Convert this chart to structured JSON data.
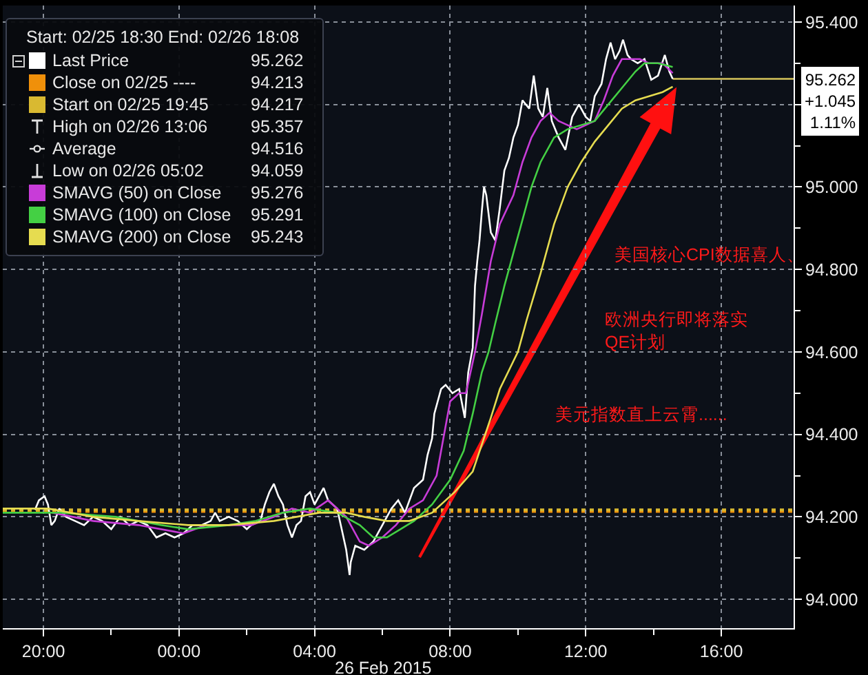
{
  "chart_data": {
    "type": "line",
    "legend": "top left",
    "grid": true,
    "legend_title": "Start: 02/25 18:30 End: 02/26 18:08",
    "xlabel": "26 Feb 2015",
    "xlim": [
      "2015-02-25T18:48",
      "2015-02-26T18:08"
    ],
    "xticks": [
      {
        "value": "2015-02-25T20:00",
        "label": "20:00"
      },
      {
        "value": "2015-02-25T22:00",
        "label": null
      },
      {
        "value": "2015-02-26T00:00",
        "label": "00:00"
      },
      {
        "value": "2015-02-26T02:00",
        "label": null
      },
      {
        "value": "2015-02-26T04:00",
        "label": "04:00"
      },
      {
        "value": "2015-02-26T06:00",
        "label": null
      },
      {
        "value": "2015-02-26T08:00",
        "label": "08:00"
      },
      {
        "value": "2015-02-26T10:00",
        "label": null
      },
      {
        "value": "2015-02-26T12:00",
        "label": "12:00"
      },
      {
        "value": "2015-02-26T14:00",
        "label": null
      },
      {
        "value": "2015-02-26T16:00",
        "label": "16:00"
      }
    ],
    "ylim": [
      93.93,
      95.44
    ],
    "yticks": [
      {
        "value": 94.0,
        "label": "94.000"
      },
      {
        "value": 94.1,
        "label": null
      },
      {
        "value": 94.2,
        "label": "94.200"
      },
      {
        "value": 94.3,
        "label": null
      },
      {
        "value": 94.4,
        "label": "94.400"
      },
      {
        "value": 94.5,
        "label": null
      },
      {
        "value": 94.6,
        "label": "94.600"
      },
      {
        "value": 94.7,
        "label": null
      },
      {
        "value": 94.8,
        "label": "94.800"
      },
      {
        "value": 94.9,
        "label": null
      },
      {
        "value": 95.0,
        "label": "95.000"
      },
      {
        "value": 95.1,
        "label": null
      },
      {
        "value": 95.2,
        "label": null
      },
      {
        "value": 95.3,
        "label": null
      },
      {
        "value": 95.4,
        "label": "95.400"
      }
    ],
    "series": [
      {
        "name": "Last Price 95.262",
        "color": "#ffffff",
        "x": [
          "2015-02-25T19:45",
          "2015-02-25T19:52",
          "2015-02-25T20:02",
          "2015-02-25T20:08",
          "2015-02-25T20:14",
          "2015-02-25T20:20",
          "2015-02-25T20:28",
          "2015-02-25T20:40",
          "2015-02-25T20:56",
          "2015-02-25T21:12",
          "2015-02-25T21:28",
          "2015-02-25T21:44",
          "2015-02-25T22:00",
          "2015-02-25T22:16",
          "2015-02-25T22:32",
          "2015-02-25T22:48",
          "2015-02-25T23:04",
          "2015-02-25T23:20",
          "2015-02-25T23:36",
          "2015-02-25T23:52",
          "2015-02-26T00:08",
          "2015-02-26T00:24",
          "2015-02-26T00:40",
          "2015-02-26T00:56",
          "2015-02-26T01:04",
          "2015-02-26T01:12",
          "2015-02-26T01:28",
          "2015-02-26T01:44",
          "2015-02-26T02:00",
          "2015-02-26T02:08",
          "2015-02-26T02:24",
          "2015-02-26T02:32",
          "2015-02-26T02:40",
          "2015-02-26T02:48",
          "2015-02-26T02:56",
          "2015-02-26T03:04",
          "2015-02-26T03:12",
          "2015-02-26T03:20",
          "2015-02-26T03:28",
          "2015-02-26T03:36",
          "2015-02-26T03:44",
          "2015-02-26T03:52",
          "2015-02-26T04:00",
          "2015-02-26T04:08",
          "2015-02-26T04:16",
          "2015-02-26T04:24",
          "2015-02-26T04:40",
          "2015-02-26T04:48",
          "2015-02-26T04:56",
          "2015-02-26T05:02",
          "2015-02-26T05:04",
          "2015-02-26T05:12",
          "2015-02-26T05:28",
          "2015-02-26T05:44",
          "2015-02-26T06:00",
          "2015-02-26T06:16",
          "2015-02-26T06:28",
          "2015-02-26T06:40",
          "2015-02-26T06:48",
          "2015-02-26T06:56",
          "2015-02-26T07:12",
          "2015-02-26T07:20",
          "2015-02-26T07:28",
          "2015-02-26T07:32",
          "2015-02-26T07:44",
          "2015-02-26T07:52",
          "2015-02-26T08:04",
          "2015-02-26T08:16",
          "2015-02-26T08:26",
          "2015-02-26T08:32",
          "2015-02-26T08:40",
          "2015-02-26T08:44",
          "2015-02-26T08:48",
          "2015-02-26T08:52",
          "2015-02-26T08:56",
          "2015-02-26T09:00",
          "2015-02-26T09:04",
          "2015-02-26T09:12",
          "2015-02-26T09:20",
          "2015-02-26T09:28",
          "2015-02-26T09:36",
          "2015-02-26T09:44",
          "2015-02-26T09:52",
          "2015-02-26T10:00",
          "2015-02-26T10:08",
          "2015-02-26T10:20",
          "2015-02-26T10:28",
          "2015-02-26T10:36",
          "2015-02-26T10:44",
          "2015-02-26T10:52",
          "2015-02-26T11:00",
          "2015-02-26T11:12",
          "2015-02-26T11:24",
          "2015-02-26T11:36",
          "2015-02-26T11:48",
          "2015-02-26T12:00",
          "2015-02-26T12:08",
          "2015-02-26T12:16",
          "2015-02-26T12:28",
          "2015-02-26T12:36",
          "2015-02-26T12:44",
          "2015-02-26T12:52",
          "2015-02-26T13:00",
          "2015-02-26T13:06",
          "2015-02-26T13:14",
          "2015-02-26T13:20",
          "2015-02-26T13:32",
          "2015-02-26T13:44",
          "2015-02-26T13:56",
          "2015-02-26T14:08",
          "2015-02-26T14:20",
          "2015-02-26T14:28",
          "2015-02-26T14:34"
        ],
        "values": [
          94.217,
          94.24,
          94.25,
          94.23,
          94.18,
          94.19,
          94.22,
          94.2,
          94.19,
          94.18,
          94.2,
          94.19,
          94.17,
          94.2,
          94.18,
          94.19,
          94.18,
          94.15,
          94.16,
          94.15,
          94.16,
          94.18,
          94.18,
          94.19,
          94.21,
          94.19,
          94.2,
          94.19,
          94.17,
          94.18,
          94.19,
          94.23,
          94.26,
          94.28,
          94.25,
          94.23,
          94.18,
          94.15,
          94.18,
          94.19,
          94.25,
          94.26,
          94.23,
          94.25,
          94.27,
          94.24,
          94.22,
          94.17,
          94.12,
          94.059,
          94.09,
          94.13,
          94.12,
          94.14,
          94.18,
          94.22,
          94.24,
          94.21,
          94.24,
          94.27,
          94.29,
          94.35,
          94.39,
          94.45,
          94.51,
          94.52,
          94.5,
          94.51,
          94.44,
          94.55,
          94.61,
          94.76,
          94.82,
          94.87,
          94.94,
          95.0,
          94.98,
          94.89,
          94.87,
          94.95,
          95.04,
          95.07,
          95.12,
          95.15,
          95.21,
          95.19,
          95.27,
          95.19,
          95.17,
          95.24,
          95.16,
          95.12,
          95.09,
          95.17,
          95.2,
          95.17,
          95.16,
          95.22,
          95.25,
          95.31,
          95.35,
          95.31,
          95.33,
          95.357,
          95.32,
          95.31,
          95.3,
          95.31,
          95.26,
          95.27,
          95.32,
          95.28,
          95.262
        ]
      },
      {
        "name": "SMAVG (50) on Close 95.276",
        "color": "#c83cd8",
        "x": [
          "2015-02-25T20:16",
          "2015-02-25T21:28",
          "2015-02-25T22:48",
          "2015-02-26T00:08",
          "2015-02-26T00:48",
          "2015-02-26T02:08",
          "2015-02-26T02:48",
          "2015-02-26T03:20",
          "2015-02-26T03:52",
          "2015-02-26T04:24",
          "2015-02-26T04:56",
          "2015-02-26T05:20",
          "2015-02-26T05:36",
          "2015-02-26T06:00",
          "2015-02-26T06:24",
          "2015-02-26T06:48",
          "2015-02-26T07:12",
          "2015-02-26T07:36",
          "2015-02-26T07:48",
          "2015-02-26T08:00",
          "2015-02-26T08:16",
          "2015-02-26T08:28",
          "2015-02-26T08:44",
          "2015-02-26T08:56",
          "2015-02-26T09:12",
          "2015-02-26T09:28",
          "2015-02-26T09:52",
          "2015-02-26T10:08",
          "2015-02-26T10:24",
          "2015-02-26T10:40",
          "2015-02-26T10:56",
          "2015-02-26T11:12",
          "2015-02-26T11:28",
          "2015-02-26T11:44",
          "2015-02-26T12:00",
          "2015-02-26T12:16",
          "2015-02-26T12:32",
          "2015-02-26T12:48",
          "2015-02-26T13:04",
          "2015-02-26T13:20",
          "2015-02-26T13:36",
          "2015-02-26T13:52",
          "2015-02-26T14:16",
          "2015-02-26T14:34"
        ],
        "values": [
          94.21,
          94.19,
          94.18,
          94.16,
          94.18,
          94.18,
          94.2,
          94.22,
          94.21,
          94.24,
          94.2,
          94.14,
          94.13,
          94.15,
          94.18,
          94.22,
          94.24,
          94.3,
          94.39,
          94.48,
          94.5,
          94.5,
          94.6,
          94.69,
          94.82,
          94.91,
          94.98,
          95.06,
          95.12,
          95.16,
          95.18,
          95.16,
          95.15,
          95.14,
          95.15,
          95.16,
          95.21,
          95.27,
          95.31,
          95.31,
          95.31,
          95.3,
          95.3,
          95.276
        ]
      },
      {
        "name": "SMAVG (100) on Close 95.291",
        "color": "#44d044",
        "x": [
          "2015-02-25T18:48",
          "2015-02-25T20:32",
          "2015-02-25T22:08",
          "2015-02-25T23:28",
          "2015-02-26T00:16",
          "2015-02-26T01:28",
          "2015-02-26T02:16",
          "2015-02-26T03:04",
          "2015-02-26T03:52",
          "2015-02-26T04:40",
          "2015-02-26T05:20",
          "2015-02-26T05:44",
          "2015-02-26T06:08",
          "2015-02-26T06:32",
          "2015-02-26T06:56",
          "2015-02-26T07:28",
          "2015-02-26T08:00",
          "2015-02-26T08:24",
          "2015-02-26T08:40",
          "2015-02-26T08:56",
          "2015-02-26T09:08",
          "2015-02-26T09:20",
          "2015-02-26T09:36",
          "2015-02-26T09:52",
          "2015-02-26T10:08",
          "2015-02-26T10:24",
          "2015-02-26T10:40",
          "2015-02-26T11:04",
          "2015-02-26T11:28",
          "2015-02-26T11:52",
          "2015-02-26T12:16",
          "2015-02-26T12:40",
          "2015-02-26T13:04",
          "2015-02-26T13:28",
          "2015-02-26T13:44",
          "2015-02-26T14:08",
          "2015-02-26T14:34"
        ],
        "values": [
          94.21,
          94.21,
          94.2,
          94.18,
          94.17,
          94.18,
          94.19,
          94.21,
          94.22,
          94.21,
          94.18,
          94.15,
          94.15,
          94.17,
          94.19,
          94.23,
          94.29,
          94.36,
          94.45,
          94.55,
          94.6,
          94.67,
          94.76,
          94.84,
          94.92,
          95.0,
          95.06,
          95.12,
          95.14,
          95.15,
          95.16,
          95.2,
          95.24,
          95.28,
          95.3,
          95.3,
          95.291
        ]
      },
      {
        "name": "SMAVG (200) on Close 95.243",
        "color": "#e6dc50",
        "x": [
          "2015-02-25T18:48",
          "2015-02-25T20:08",
          "2015-02-25T21:28",
          "2015-02-25T22:48",
          "2015-02-26T00:16",
          "2015-02-26T01:28",
          "2015-02-26T02:48",
          "2015-02-26T04:08",
          "2015-02-26T04:56",
          "2015-02-26T05:28",
          "2015-02-26T06:08",
          "2015-02-26T06:48",
          "2015-02-26T07:28",
          "2015-02-26T08:08",
          "2015-02-26T08:40",
          "2015-02-26T09:12",
          "2015-02-26T09:28",
          "2015-02-26T10:00",
          "2015-02-26T10:16",
          "2015-02-26T10:40",
          "2015-02-26T11:04",
          "2015-02-26T11:28",
          "2015-02-26T11:52",
          "2015-02-26T12:16",
          "2015-02-26T12:40",
          "2015-02-26T13:04",
          "2015-02-26T13:28",
          "2015-02-26T13:52",
          "2015-02-26T14:16",
          "2015-02-26T14:34"
        ],
        "values": [
          94.22,
          94.22,
          94.2,
          94.19,
          94.18,
          94.18,
          94.19,
          94.21,
          94.21,
          94.2,
          94.19,
          94.19,
          94.21,
          94.26,
          94.31,
          94.44,
          94.51,
          94.6,
          94.68,
          94.79,
          94.91,
          95.0,
          95.06,
          95.11,
          95.15,
          95.19,
          95.21,
          95.22,
          95.23,
          95.243
        ]
      }
    ],
    "ref_lines": [
      {
        "axis": "y",
        "value": 94.213,
        "label": "Close on 02/25 ---- 94.213",
        "color": "#f0900a",
        "line_style": "dotted"
      },
      {
        "axis": "y",
        "value": 94.217,
        "label": "Start on 02/25 19:45 94.217",
        "color": "#d9b931",
        "line_style": "dotted"
      },
      {
        "axis": "y",
        "value": 95.262,
        "label": "95.262\n+1.045\n1.11%",
        "color": "#d6c45a",
        "line_style": "solid"
      }
    ],
    "annotations": [
      "High on 02/26 13:06 95.357",
      "Average 94.516",
      "Low on 02/26 05:02 94.059",
      "美国核心CPI数据喜人、",
      "欧洲央行即将落实\nQE计划",
      "美元指数直上云霄......"
    ]
  }
}
